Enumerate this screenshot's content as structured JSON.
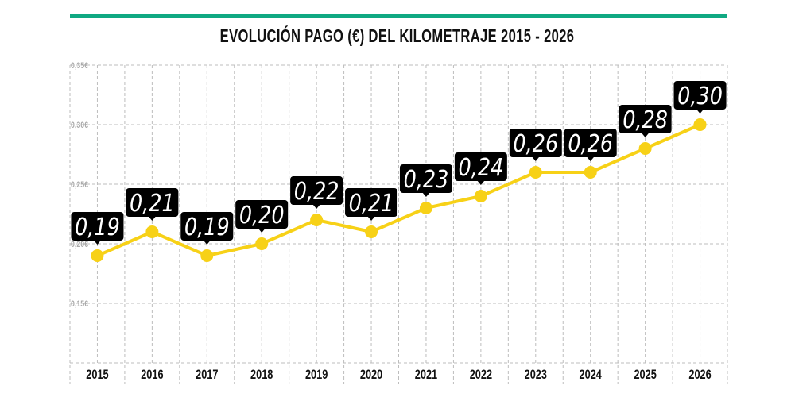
{
  "header": {
    "accent_color": "#10a982"
  },
  "chart_data": {
    "type": "line",
    "title": "EVOLUCIÓN PAGO (€) DEL KILOMETRAJE 2015 - 2026",
    "categories": [
      "2015",
      "2016",
      "2017",
      "2018",
      "2019",
      "2020",
      "2021",
      "2022",
      "2023",
      "2024",
      "2025",
      "2026"
    ],
    "values": [
      0.19,
      0.21,
      0.19,
      0.2,
      0.22,
      0.21,
      0.23,
      0.24,
      0.26,
      0.26,
      0.28,
      0.3
    ],
    "data_labels": [
      "0,19",
      "0,21",
      "0,19",
      "0,20",
      "0,22",
      "0,21",
      "0,23",
      "0,24",
      "0,26",
      "0,26",
      "0,28",
      "0,30"
    ],
    "y_ticks": [
      0.15,
      0.2,
      0.25,
      0.3,
      0.35
    ],
    "y_tick_labels": [
      "0,15€",
      "0,20€",
      "0,25€",
      "0,30€",
      "0,35€"
    ],
    "ylim": [
      0.1,
      0.35
    ],
    "grid": true,
    "line_color": "#f7d117",
    "label_bg": "#000000",
    "xlabel": "",
    "ylabel": ""
  }
}
